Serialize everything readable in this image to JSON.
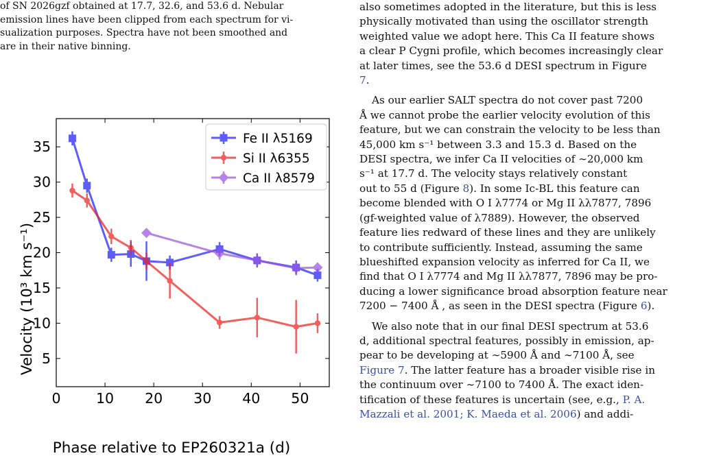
{
  "caption": {
    "lines": [
      "of SN 2026gzf obtained at 17.7, 32.6, and 53.6 d.  Nebular",
      "emission lines have been clipped from each spectrum for vi-",
      "sualization purposes. Spectra have not been smoothed and",
      "are in their native binning."
    ]
  },
  "body_text": {
    "p1": [
      "also sometimes adopted in the literature, but this is less",
      "physically motivated than using the oscillator strength",
      "weighted value we adopt here. This Ca II feature shows",
      "a clear P Cygni profile, which becomes increasingly clear",
      "at later times, see the 53.6 d DESI spectrum in Figure"
    ],
    "p1_figref": "7",
    "p1_end": ".",
    "p2": [
      "As our earlier SALT spectra do not cover past 7200",
      "Å we cannot probe the earlier velocity evolution of this",
      "feature, but we can constrain the velocity to be less than",
      "45,000 km s⁻¹ between 3.3 and 15.3 d.  Based on the",
      "DESI spectra, we infer Ca II velocities of ∼20,000 km",
      "s⁻¹ at 17.7 d.  The velocity stays relatively constant"
    ],
    "p2_l7_before": "out to 55 d (Figure ",
    "p2_l7_ref": "8",
    "p2_l7_after": ").  In some Ic-BL this feature can",
    "p2_more": [
      "become blended with O I λ7774 or Mg II λλ7877, 7896",
      "(gf-weighted value of λ7889).  However, the observed",
      "feature lies redward of these lines and they are unlikely",
      "to contribute sufficiently.  Instead, assuming the same",
      "blueshifted expansion velocity as inferred for Ca II, we",
      "find that O I λ7774 and Mg II λλ7877, 7896 may be pro-",
      "ducing a lower significance broad absorption feature near"
    ],
    "p2_last_before": "7200 − 7400 Å , as seen in the DESI spectra (Figure ",
    "p2_last_ref": "6",
    "p2_last_after": ").",
    "p3_l1": "We also note that in our final DESI spectrum at 53.6",
    "p3_l2": "d, additional spectral features, possibly in emission, ap-",
    "p3_l3": "pear to be developing at ∼5900 Å  and ∼7100 Å, see",
    "p3_l4_ref": "Figure 7",
    "p3_l4_after": ". The latter feature has a broader visible rise in",
    "p3_l5": "the continuum over ∼7100 to 7400 Å. The exact iden-",
    "p3_l6_before": "tification of these features is uncertain (see, e.g., ",
    "p3_l6_ref": "P. A.",
    "p3_l7_ref": "Mazzali et al. 2001; K. Maeda et al. 2006",
    "p3_l7_after": ") and addi-"
  },
  "chart_data": {
    "type": "scatter",
    "xlabel": "Phase relative to EP260321a (d)",
    "ylabel": "Velocity (10³ km s⁻¹)",
    "xlim": [
      0,
      56
    ],
    "ylim": [
      1,
      39
    ],
    "xticks": [
      0,
      10,
      20,
      30,
      40,
      50
    ],
    "yticks": [
      5,
      10,
      15,
      20,
      25,
      30,
      35
    ],
    "legend_position": "top-right",
    "series": [
      {
        "name": "Fe II λ5169",
        "color": "#1f1fff",
        "marker": "square",
        "x": [
          3.3,
          6.3,
          11.3,
          15.3,
          18.5,
          23.3,
          33.5,
          41.2,
          49.2,
          53.6
        ],
        "y": [
          36.2,
          29.5,
          19.7,
          19.8,
          18.8,
          18.6,
          20.5,
          18.9,
          17.9,
          16.8
        ],
        "yerr": [
          1.0,
          1.0,
          1.0,
          1.8,
          2.8,
          1.0,
          1.0,
          1.0,
          1.0,
          0.9
        ]
      },
      {
        "name": "Si II λ6355",
        "color": "#ee2222",
        "marker": "circle",
        "x": [
          3.3,
          6.3,
          11.3,
          15.3,
          18.5,
          23.3,
          33.5,
          41.2,
          49.2,
          53.6
        ],
        "y": [
          28.8,
          27.4,
          22.3,
          20.7,
          18.8,
          16.0,
          10.1,
          10.8,
          9.5,
          10.0
        ],
        "yerr": [
          1.0,
          1.0,
          1.1,
          1.1,
          1.2,
          2.5,
          0.9,
          2.8,
          3.8,
          1.4
        ]
      },
      {
        "name": "Ca II λ8579",
        "color": "#9b55dd",
        "marker": "diamond",
        "x": [
          18.5,
          33.5,
          41.2,
          49.2,
          53.6
        ],
        "y": [
          22.8,
          19.9,
          18.9,
          17.8,
          17.9
        ],
        "yerr": [
          0.6,
          0.9,
          1.0,
          1.0,
          0.7
        ]
      }
    ]
  }
}
